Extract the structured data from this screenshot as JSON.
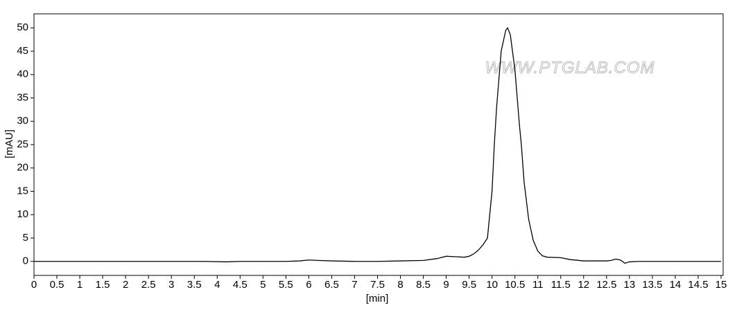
{
  "chart_data": {
    "type": "line",
    "x_label": "[min]",
    "y_label": "[mAU]",
    "annotations": [
      "WWW.PTGLAB.COM"
    ],
    "xlim": [
      0,
      15
    ],
    "ylim": [
      -3,
      53
    ],
    "xticks": [
      0,
      0.5,
      1,
      1.5,
      2,
      2.5,
      3,
      3.5,
      4,
      4.5,
      5,
      5.5,
      6,
      6.5,
      7,
      7.5,
      8,
      8.5,
      9,
      9.5,
      10,
      10.5,
      11,
      11.5,
      12,
      12.5,
      13,
      13.5,
      14,
      14.5,
      15
    ],
    "yticks": [
      0,
      5,
      10,
      15,
      20,
      25,
      30,
      35,
      40,
      45,
      50
    ],
    "grid": false,
    "series": [
      {
        "color": "#000000",
        "x": [
          0,
          1,
          2,
          3,
          3.7,
          4.2,
          4.5,
          5,
          5.5,
          5.8,
          6.0,
          6.2,
          6.5,
          7,
          7.5,
          8,
          8.5,
          8.8,
          9.0,
          9.2,
          9.4,
          9.5,
          9.6,
          9.7,
          9.8,
          9.9,
          10.0,
          10.05,
          10.1,
          10.2,
          10.3,
          10.34,
          10.4,
          10.5,
          10.6,
          10.64,
          10.7,
          10.8,
          10.9,
          11.0,
          11.1,
          11.2,
          11.5,
          11.7,
          12.0,
          12.5,
          12.6,
          12.7,
          12.8,
          12.9,
          13.0,
          13.2,
          14,
          15
        ],
        "values": [
          0,
          0,
          0,
          0,
          0,
          -0.1,
          0,
          0,
          0,
          0.1,
          0.3,
          0.2,
          0.1,
          0,
          0,
          0.1,
          0.2,
          0.6,
          1.1,
          1.0,
          0.9,
          1.1,
          1.6,
          2.4,
          3.5,
          5,
          15,
          25,
          33,
          45,
          49.5,
          50,
          48.5,
          41,
          29,
          25,
          17,
          9,
          4.5,
          2.2,
          1.2,
          0.9,
          0.8,
          0.4,
          0.1,
          0.1,
          0.2,
          0.5,
          0.3,
          -0.4,
          -0.1,
          0,
          0,
          0
        ]
      }
    ]
  }
}
